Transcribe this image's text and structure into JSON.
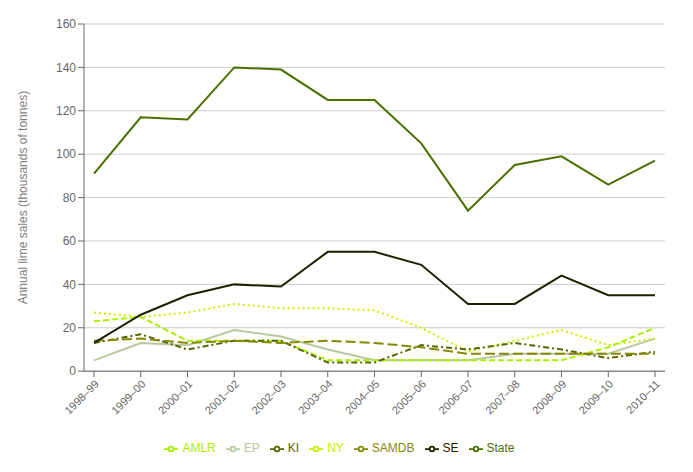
{
  "chart_data": {
    "type": "line",
    "ylabel": "Annual lime sales (thousands of tonnes)",
    "categories": [
      "1998–99",
      "1999–00",
      "2000–01",
      "2001–02",
      "2002–03",
      "2003–04",
      "2004–05",
      "2005–06",
      "2006–07",
      "2007–08",
      "2008–09",
      "2009–10",
      "2010–11"
    ],
    "series": [
      {
        "name": "EP",
        "color": "#b8c8a0",
        "line_style": "solid",
        "values": [
          5,
          13,
          12,
          19,
          16,
          10,
          5,
          5,
          5,
          8,
          8,
          8,
          15
        ]
      },
      {
        "name": "NY",
        "color": "#ccee00",
        "line_style": "dotted",
        "values": [
          27,
          25,
          27,
          31,
          29,
          29,
          28,
          20,
          9,
          14,
          19,
          12,
          15
        ]
      },
      {
        "name": "AMLR",
        "color": "#aaee00",
        "line_style": "dashed",
        "values": [
          23,
          25,
          14,
          14,
          14,
          5,
          5,
          5,
          5,
          5,
          5,
          11,
          20
        ]
      },
      {
        "name": "KI",
        "color": "#556600",
        "line_style": "dashdot",
        "values": [
          13,
          17,
          10,
          14,
          14,
          4,
          4,
          12,
          10,
          13,
          10,
          6,
          9
        ]
      },
      {
        "name": "SAMDB",
        "color": "#888800",
        "line_style": "longdash",
        "values": [
          14,
          15,
          13,
          14,
          13,
          14,
          13,
          11,
          8,
          8,
          8,
          8,
          8
        ]
      },
      {
        "name": "SE",
        "color": "#1a2200",
        "line_style": "solid",
        "values": [
          13,
          26,
          35,
          40,
          39,
          55,
          55,
          49,
          31,
          31,
          44,
          35,
          35
        ]
      },
      {
        "name": "State",
        "color": "#4a7000",
        "line_style": "solid",
        "values": [
          91,
          117,
          116,
          140,
          139,
          125,
          125,
          105,
          74,
          95,
          99,
          86,
          97
        ]
      }
    ],
    "ylim": [
      0,
      160
    ],
    "yticks": [
      0,
      20,
      40,
      60,
      80,
      100,
      120,
      140,
      160
    ],
    "grid": true,
    "legend": "bottom"
  }
}
